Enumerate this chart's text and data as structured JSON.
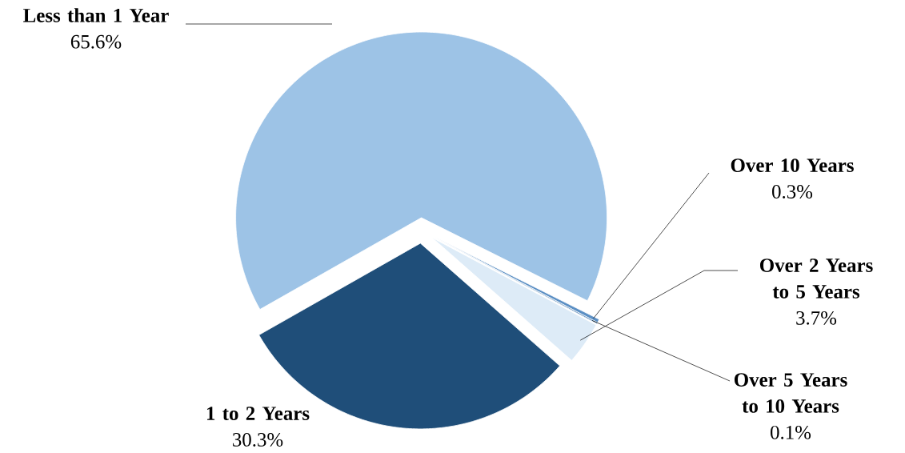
{
  "chart_data": {
    "type": "pie",
    "categories": [
      "Less than 1 Year",
      "Over 10 Years",
      "Over 5 Years to 10 Years",
      "Over 2 Years to 5 Years",
      "1 to 2 Years"
    ],
    "values": [
      65.6,
      0.3,
      0.1,
      3.7,
      30.3
    ],
    "colors": [
      "#9dc3e6",
      "#5b8fc4",
      "#2e6aa6",
      "#ddebf7",
      "#1f4e79"
    ],
    "value_labels": [
      "65.6%",
      "0.3%",
      "0.1%",
      "3.7%",
      "30.3%"
    ]
  }
}
